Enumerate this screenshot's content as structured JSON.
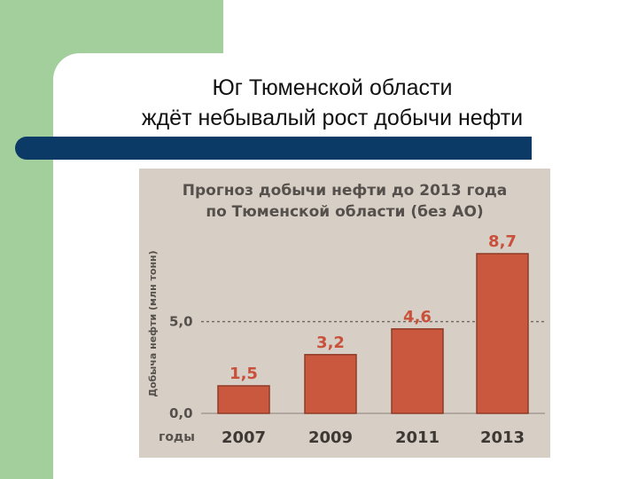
{
  "slide": {
    "title_line1": "Юг Тюменской области",
    "title_line2": "ждёт небывалый рост добычи нефти",
    "accent_green": "#a3cf9c",
    "accent_navy": "#0b3a66"
  },
  "chart_data": {
    "type": "bar",
    "title_line1": "Прогноз добычи нефти до 2013 года",
    "title_line2": "по Тюменской области (без АО)",
    "ylabel": "Добыча нефти (млн тонн)",
    "xlabel": "годы",
    "categories": [
      "2007",
      "2009",
      "2011",
      "2013"
    ],
    "values": [
      1.5,
      3.2,
      4.6,
      8.7
    ],
    "value_labels": [
      "1,5",
      "3,2",
      "4,6",
      "8,7"
    ],
    "y_ticks": [
      {
        "value": 0,
        "label": "0,0"
      },
      {
        "value": 5,
        "label": "5,0"
      }
    ],
    "reference_line": 5,
    "ylim": [
      0,
      8.7
    ],
    "grid": false,
    "bar_color": "#c9583f"
  }
}
